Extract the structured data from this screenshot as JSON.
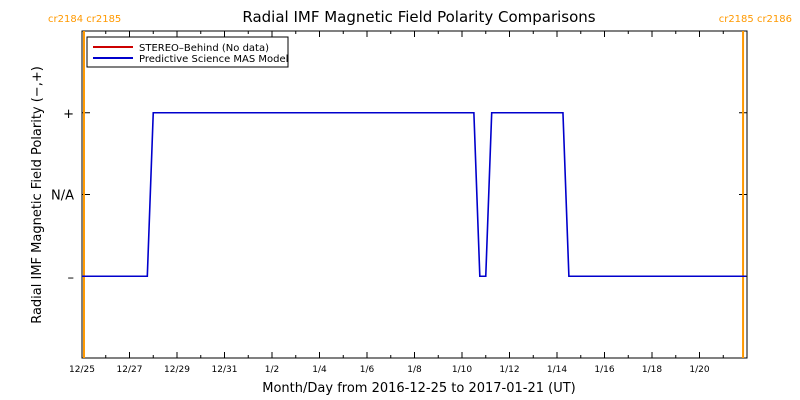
{
  "chart_data": {
    "type": "line",
    "title": "Radial IMF Magnetic Field Polarity Comparisons",
    "xlabel": "Month/Day from 2016-12-25 to 2017-01-21 (UT)",
    "ylabel": "Radial IMF Magnetic Field Polarity (−,+)",
    "xlim": [
      "2016-12-25T00:00",
      "2017-01-21T23:59"
    ],
    "ylim": [
      -2,
      2
    ],
    "x_ticks": [
      {
        "date": "2016-12-25",
        "label": "12/25"
      },
      {
        "date": "2016-12-27",
        "label": "12/27"
      },
      {
        "date": "2016-12-29",
        "label": "12/29"
      },
      {
        "date": "2016-12-31",
        "label": "12/31"
      },
      {
        "date": "2017-01-02",
        "label": "1/2"
      },
      {
        "date": "2017-01-04",
        "label": "1/4"
      },
      {
        "date": "2017-01-06",
        "label": "1/6"
      },
      {
        "date": "2017-01-08",
        "label": "1/8"
      },
      {
        "date": "2017-01-10",
        "label": "1/10"
      },
      {
        "date": "2017-01-12",
        "label": "1/12"
      },
      {
        "date": "2017-01-14",
        "label": "1/14"
      },
      {
        "date": "2017-01-16",
        "label": "1/16"
      },
      {
        "date": "2017-01-18",
        "label": "1/18"
      },
      {
        "date": "2017-01-20",
        "label": "1/20"
      }
    ],
    "y_ticks": [
      {
        "value": 1,
        "label": "+"
      },
      {
        "value": 0,
        "label": "N/A"
      },
      {
        "value": -1,
        "label": "–"
      }
    ],
    "series": [
      {
        "name": "STEREO–Behind (No data)",
        "color": "#cc0000",
        "points": []
      },
      {
        "name": "Predictive Science MAS Model",
        "color": "#0000cc",
        "points": [
          {
            "x": "2016-12-25T00:00",
            "y": -1
          },
          {
            "x": "2016-12-27T18:00",
            "y": -1
          },
          {
            "x": "2016-12-28T00:00",
            "y": 1
          },
          {
            "x": "2017-01-10T12:00",
            "y": 1
          },
          {
            "x": "2017-01-10T18:00",
            "y": -1
          },
          {
            "x": "2017-01-11T00:00",
            "y": -1
          },
          {
            "x": "2017-01-11T06:00",
            "y": 1
          },
          {
            "x": "2017-01-14T06:00",
            "y": 1
          },
          {
            "x": "2017-01-14T12:00",
            "y": -1
          },
          {
            "x": "2017-01-21T23:00",
            "y": -1
          }
        ]
      }
    ],
    "carrington_markers": [
      {
        "date": "2016-12-25T02:00",
        "label": "cr2184 cr2185",
        "side": "left"
      },
      {
        "date": "2017-01-21T20:00",
        "label": "cr2185 cr2186",
        "side": "right"
      }
    ],
    "marker_color": "#ff9900",
    "grid": false,
    "legend_position": "top-left"
  }
}
